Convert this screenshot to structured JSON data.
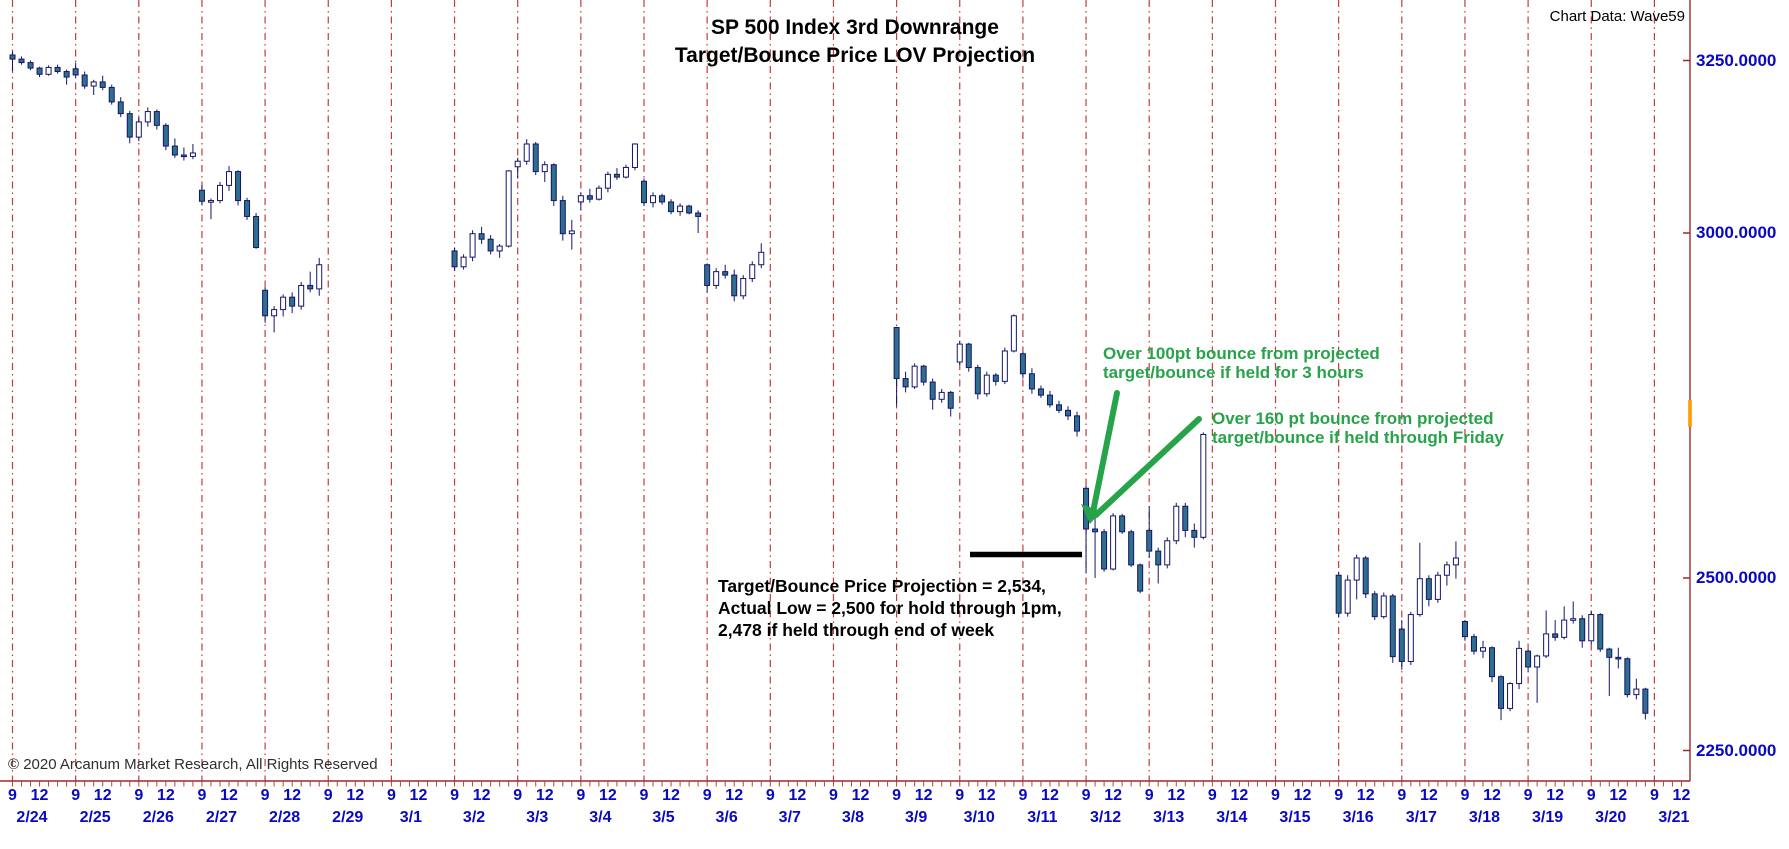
{
  "title": {
    "line1": "SP 500 Index 3rd Downrange",
    "line2": "Target/Bounce Price LOV Projection"
  },
  "source_label": "Chart Data: Wave59",
  "copyright": "© 2020 Arcanum Market Research, All Rights Reserved",
  "annotations": {
    "bounce_3h": {
      "line1": "Over 100pt bounce from projected",
      "line2": "target/bounce if held for 3 hours",
      "color": "#27a34a"
    },
    "bounce_friday": {
      "line1": "Over 160 pt bounce from projected",
      "line2": "target/bounce if held through Friday",
      "color": "#27a34a"
    },
    "target": {
      "line1": "Target/Bounce Price Projection = 2,534,",
      "line2": "Actual Low = 2,500 for hold through 1pm,",
      "line3": "2,478 if held through end of week",
      "color": "#000000"
    }
  },
  "chart_data": {
    "type": "candlestick",
    "timeframe": "hourly, 7 bars per session (9:00-15:00)",
    "title": "SP 500 Index 3rd Downrange Target/Bounce Price LOV Projection",
    "ylabel": "price",
    "ylim": [
      2206,
      3338
    ],
    "grid": "vertical dashed session separators only",
    "legend": "none",
    "target_line_price": 2534,
    "y_ticks": [
      {
        "price": 3250,
        "label": "3250.0000"
      },
      {
        "price": 3000,
        "label": "3000.0000"
      },
      {
        "price": 2500,
        "label": "2500.0000"
      },
      {
        "price": 2250,
        "label": "2250.0000"
      }
    ],
    "x_hour_labels": [
      {
        "label": "9",
        "bar": 0
      },
      {
        "label": "12",
        "bar": 3
      }
    ],
    "colors": {
      "up_fill": "#ffffff",
      "down_fill": "#2e6f8e",
      "outline": "#15156b",
      "grid_dash": "#c33b3b",
      "axis_border": "#9c2b2b",
      "axis_label": "#0909c2",
      "annotation_green": "#27a34a",
      "orange_marker": "#ff9c00"
    },
    "days": [
      {
        "date": "2/24",
        "bars": [
          [
            3258,
            3263,
            3235,
            3252
          ],
          [
            3252,
            3256,
            3244,
            3247
          ],
          [
            3247,
            3250,
            3236,
            3239
          ],
          [
            3239,
            3241,
            3226,
            3230
          ],
          [
            3230,
            3243,
            3228,
            3240
          ],
          [
            3240,
            3244,
            3231,
            3234
          ],
          [
            3234,
            3237,
            3215,
            3226
          ]
        ]
      },
      {
        "date": "2/25",
        "bars": [
          [
            3238,
            3247,
            3225,
            3229
          ],
          [
            3229,
            3234,
            3209,
            3213
          ],
          [
            3213,
            3222,
            3200,
            3219
          ],
          [
            3219,
            3228,
            3207,
            3211
          ],
          [
            3211,
            3215,
            3186,
            3190
          ],
          [
            3190,
            3197,
            3168,
            3173
          ],
          [
            3173,
            3177,
            3130,
            3139
          ]
        ]
      },
      {
        "date": "2/26",
        "bars": [
          [
            3139,
            3167,
            3133,
            3161
          ],
          [
            3161,
            3182,
            3154,
            3176
          ],
          [
            3176,
            3179,
            3150,
            3156
          ],
          [
            3156,
            3159,
            3120,
            3126
          ],
          [
            3126,
            3137,
            3109,
            3113
          ],
          [
            3113,
            3124,
            3105,
            3111
          ],
          [
            3111,
            3129,
            3107,
            3116
          ]
        ]
      },
      {
        "date": "2/27",
        "bars": [
          [
            3062,
            3069,
            3040,
            3046
          ],
          [
            3046,
            3050,
            3020,
            3047
          ],
          [
            3047,
            3074,
            3043,
            3069
          ],
          [
            3069,
            3097,
            3061,
            3089
          ],
          [
            3089,
            3091,
            3040,
            3047
          ],
          [
            3047,
            3051,
            3019,
            3024
          ],
          [
            3024,
            3029,
            2977,
            2979
          ]
        ]
      },
      {
        "date": "2/28",
        "bars": [
          [
            2917,
            2921,
            2870,
            2880
          ],
          [
            2880,
            2894,
            2856,
            2889
          ],
          [
            2889,
            2911,
            2879,
            2907
          ],
          [
            2907,
            2914,
            2884,
            2894
          ],
          [
            2894,
            2929,
            2889,
            2924
          ],
          [
            2924,
            2944,
            2914,
            2919
          ],
          [
            2919,
            2964,
            2909,
            2954
          ]
        ]
      },
      {
        "date": "2/29",
        "bars": null
      },
      {
        "date": "3/1",
        "bars": null
      },
      {
        "date": "3/2",
        "bars": [
          [
            2974,
            2979,
            2945,
            2951
          ],
          [
            2951,
            2969,
            2947,
            2965
          ],
          [
            2965,
            3004,
            2959,
            2999
          ],
          [
            2999,
            3009,
            2984,
            2991
          ],
          [
            2991,
            2997,
            2969,
            2974
          ],
          [
            2974,
            2984,
            2964,
            2981
          ],
          [
            2981,
            3091,
            2979,
            3090
          ]
        ]
      },
      {
        "date": "3/3",
        "bars": [
          [
            3096,
            3109,
            3079,
            3104
          ],
          [
            3104,
            3136,
            3099,
            3129
          ],
          [
            3129,
            3132,
            3084,
            3089
          ],
          [
            3089,
            3104,
            3074,
            3099
          ],
          [
            3099,
            3101,
            3039,
            3047
          ],
          [
            3047,
            3054,
            2989,
            2999
          ],
          [
            2999,
            3019,
            2976,
            3003
          ]
        ]
      },
      {
        "date": "3/4",
        "bars": [
          [
            3045,
            3059,
            3033,
            3054
          ],
          [
            3054,
            3064,
            3044,
            3049
          ],
          [
            3049,
            3069,
            3047,
            3065
          ],
          [
            3065,
            3089,
            3059,
            3085
          ],
          [
            3085,
            3094,
            3077,
            3081
          ],
          [
            3081,
            3099,
            3079,
            3095
          ],
          [
            3095,
            3130,
            3091,
            3129
          ]
        ]
      },
      {
        "date": "3/5",
        "bars": [
          [
            3075,
            3079,
            3039,
            3044
          ],
          [
            3044,
            3059,
            3037,
            3054
          ],
          [
            3054,
            3057,
            3041,
            3045
          ],
          [
            3045,
            3049,
            3027,
            3031
          ],
          [
            3031,
            3043,
            3025,
            3039
          ],
          [
            3039,
            3041,
            3027,
            3029
          ],
          [
            3029,
            3033,
            3000,
            3024
          ]
        ]
      },
      {
        "date": "3/6",
        "bars": [
          [
            2954,
            2956,
            2914,
            2924
          ],
          [
            2924,
            2949,
            2919,
            2944
          ],
          [
            2944,
            2954,
            2934,
            2939
          ],
          [
            2939,
            2947,
            2901,
            2909
          ],
          [
            2909,
            2939,
            2904,
            2934
          ],
          [
            2934,
            2959,
            2929,
            2954
          ],
          [
            2954,
            2985,
            2949,
            2972
          ]
        ]
      },
      {
        "date": "3/7",
        "bars": null
      },
      {
        "date": "3/8",
        "bars": null
      },
      {
        "date": "3/9",
        "bars": [
          [
            2863,
            2864,
            2748,
            2789
          ],
          [
            2789,
            2799,
            2769,
            2777
          ],
          [
            2777,
            2811,
            2774,
            2807
          ],
          [
            2807,
            2809,
            2779,
            2784
          ],
          [
            2784,
            2789,
            2744,
            2759
          ],
          [
            2759,
            2774,
            2754,
            2769
          ],
          [
            2769,
            2771,
            2734,
            2746
          ]
        ]
      },
      {
        "date": "3/10",
        "bars": [
          [
            2813,
            2844,
            2809,
            2839
          ],
          [
            2839,
            2841,
            2799,
            2805
          ],
          [
            2805,
            2809,
            2759,
            2767
          ],
          [
            2767,
            2799,
            2763,
            2794
          ],
          [
            2794,
            2797,
            2779,
            2785
          ],
          [
            2785,
            2834,
            2781,
            2829
          ],
          [
            2829,
            2882,
            2827,
            2880
          ]
        ]
      },
      {
        "date": "3/11",
        "bars": [
          [
            2825,
            2827,
            2789,
            2796
          ],
          [
            2796,
            2804,
            2767,
            2774
          ],
          [
            2774,
            2779,
            2761,
            2765
          ],
          [
            2765,
            2771,
            2747,
            2751
          ],
          [
            2751,
            2757,
            2739,
            2743
          ],
          [
            2743,
            2749,
            2729,
            2735
          ],
          [
            2735,
            2741,
            2705,
            2713
          ]
        ]
      },
      {
        "date": "3/12",
        "bars": [
          [
            2630,
            2634,
            2507,
            2571
          ],
          [
            2571,
            2589,
            2500,
            2567
          ],
          [
            2567,
            2571,
            2509,
            2513
          ],
          [
            2513,
            2594,
            2511,
            2590
          ],
          [
            2590,
            2593,
            2564,
            2567
          ],
          [
            2567,
            2570,
            2516,
            2519
          ],
          [
            2519,
            2521,
            2478,
            2481
          ]
        ]
      },
      {
        "date": "3/13",
        "bars": [
          [
            2569,
            2604,
            2529,
            2539
          ],
          [
            2539,
            2544,
            2492,
            2519
          ],
          [
            2519,
            2559,
            2514,
            2554
          ],
          [
            2554,
            2609,
            2549,
            2604
          ],
          [
            2604,
            2609,
            2559,
            2569
          ],
          [
            2569,
            2579,
            2544,
            2559
          ],
          [
            2559,
            2711,
            2556,
            2708
          ]
        ]
      },
      {
        "date": "3/14",
        "bars": null
      },
      {
        "date": "3/15",
        "bars": null
      },
      {
        "date": "3/16",
        "bars": [
          [
            2504,
            2509,
            2443,
            2449
          ],
          [
            2449,
            2504,
            2444,
            2497
          ],
          [
            2497,
            2534,
            2469,
            2529
          ],
          [
            2529,
            2532,
            2471,
            2477
          ],
          [
            2477,
            2481,
            2439,
            2444
          ],
          [
            2444,
            2479,
            2441,
            2474
          ],
          [
            2474,
            2477,
            2377,
            2386
          ]
        ]
      },
      {
        "date": "3/17",
        "bars": [
          [
            2426,
            2439,
            2367,
            2379
          ],
          [
            2379,
            2451,
            2374,
            2447
          ],
          [
            2447,
            2551,
            2444,
            2499
          ],
          [
            2499,
            2504,
            2459,
            2469
          ],
          [
            2469,
            2509,
            2464,
            2504
          ],
          [
            2504,
            2524,
            2489,
            2519
          ],
          [
            2519,
            2553,
            2499,
            2529
          ]
        ]
      },
      {
        "date": "3/18",
        "bars": [
          [
            2437,
            2439,
            2409,
            2415
          ],
          [
            2415,
            2419,
            2389,
            2394
          ],
          [
            2394,
            2409,
            2384,
            2399
          ],
          [
            2399,
            2401,
            2349,
            2357
          ],
          [
            2357,
            2359,
            2294,
            2311
          ],
          [
            2311,
            2349,
            2307,
            2347
          ],
          [
            2347,
            2409,
            2339,
            2398
          ]
        ]
      },
      {
        "date": "3/19",
        "bars": [
          [
            2394,
            2396,
            2364,
            2371
          ],
          [
            2371,
            2389,
            2319,
            2387
          ],
          [
            2387,
            2453,
            2384,
            2419
          ],
          [
            2419,
            2439,
            2409,
            2414
          ],
          [
            2414,
            2459,
            2411,
            2439
          ],
          [
            2439,
            2466,
            2434,
            2441
          ],
          [
            2441,
            2446,
            2399,
            2409
          ]
        ]
      },
      {
        "date": "3/20",
        "bars": [
          [
            2409,
            2452,
            2404,
            2447
          ],
          [
            2447,
            2449,
            2393,
            2397
          ],
          [
            2397,
            2399,
            2329,
            2385
          ],
          [
            2385,
            2399,
            2369,
            2383
          ],
          [
            2383,
            2385,
            2327,
            2331
          ],
          [
            2331,
            2354,
            2324,
            2339
          ],
          [
            2339,
            2341,
            2295,
            2304
          ]
        ]
      },
      {
        "date": "3/21",
        "bars": null
      }
    ]
  }
}
